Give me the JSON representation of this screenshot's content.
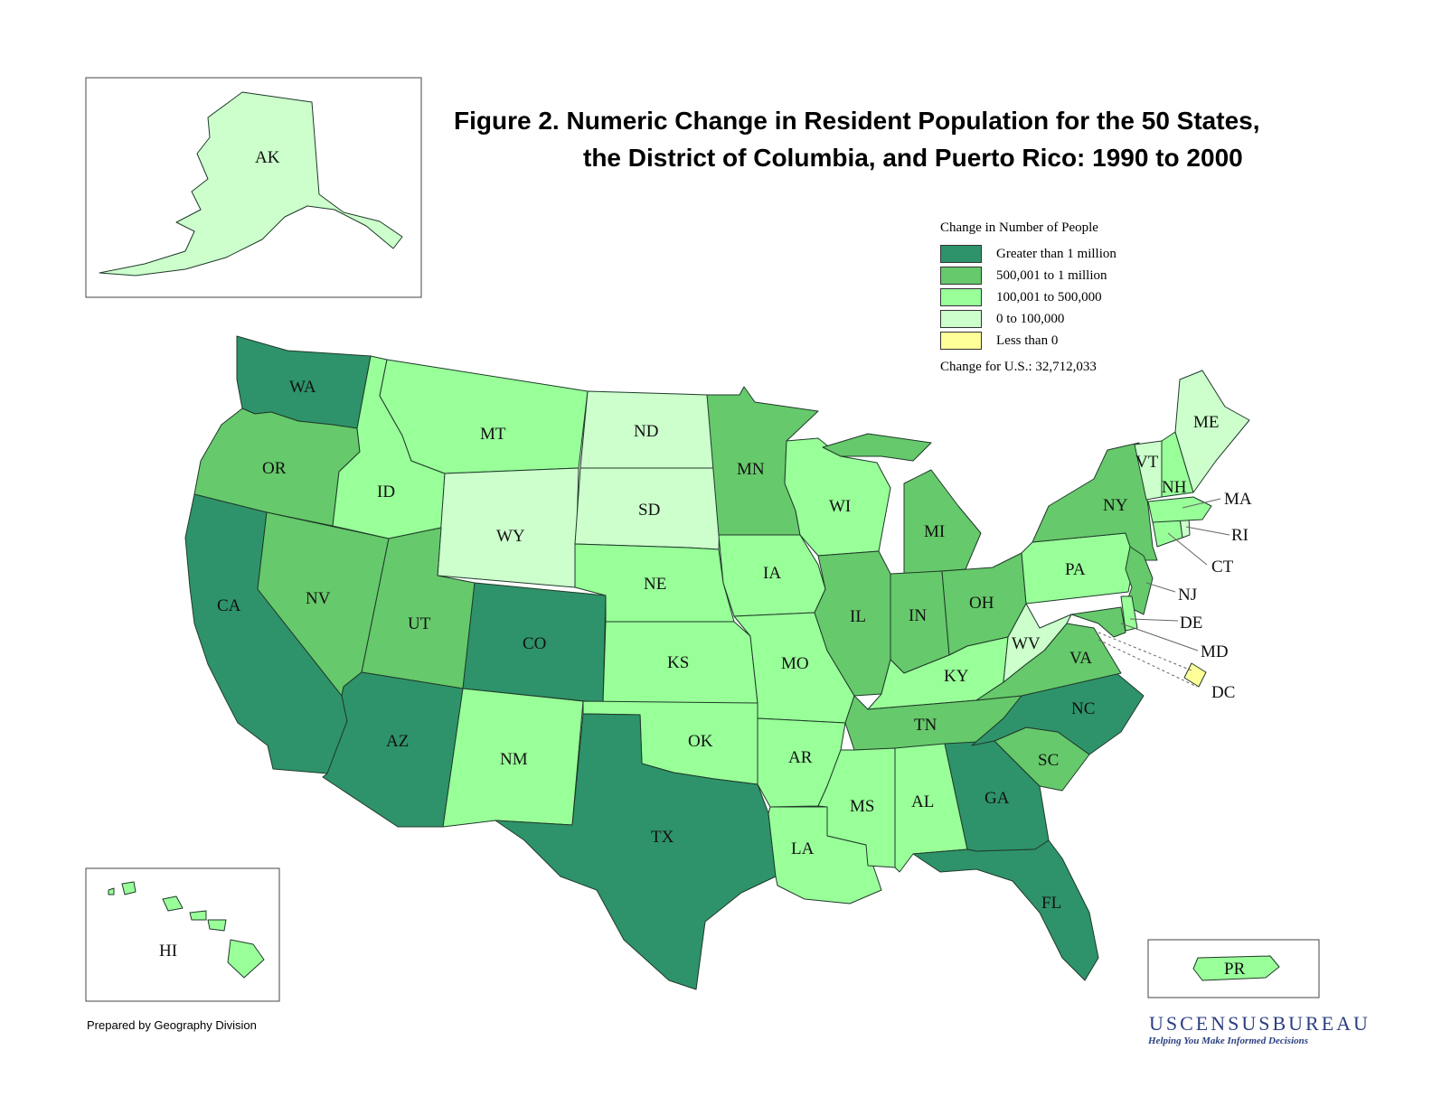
{
  "title": {
    "line1": "Figure 2.  Numeric Change in Resident Population for the 50 States,",
    "line2": "the District of Columbia, and Puerto Rico: 1990 to 2000"
  },
  "legend": {
    "title": "Change in Number of People",
    "classes": [
      {
        "label": "Greater than 1 million",
        "color": "#2e936a"
      },
      {
        "label": "500,001 to 1 million",
        "color": "#66c96b"
      },
      {
        "label": "100,001 to 500,000",
        "color": "#99ff99"
      },
      {
        "label": "0 to 100,000",
        "color": "#ccffcc"
      },
      {
        "label": "Less than 0",
        "color": "#ffff99"
      }
    ],
    "us_change": "Change for U.S.: 32,712,033"
  },
  "states": {
    "WA": 3,
    "OR": 2,
    "CA": 3,
    "NV": 2,
    "ID": 1,
    "MT": 1,
    "WY": 0,
    "UT": 2,
    "AZ": 3,
    "NM": 1,
    "CO": 3,
    "ND": 0,
    "SD": 0,
    "NE": 1,
    "KS": 1,
    "OK": 1,
    "TX": 3,
    "MN": 2,
    "IA": 1,
    "MO": 1,
    "AR": 1,
    "LA": 1,
    "WI": 1,
    "IL": 2,
    "MI": 2,
    "IN": 2,
    "OH": 2,
    "KY": 1,
    "TN": 2,
    "MS": 1,
    "AL": 1,
    "GA": 3,
    "FL": 3,
    "SC": 2,
    "NC": 3,
    "VA": 2,
    "WV": 0,
    "PA": 1,
    "NY": 2,
    "NJ": 2,
    "DE": 1,
    "MD": 2,
    "DC": -1,
    "CT": 1,
    "RI": 0,
    "MA": 1,
    "VT": 0,
    "NH": 1,
    "ME": 0,
    "AK": 0,
    "HI": 1,
    "PR": 1
  },
  "footer": "Prepared by Geography Division",
  "logo": {
    "text": "USCENSUSBUREAU",
    "tagline": "Helping You Make Informed Decisions"
  }
}
